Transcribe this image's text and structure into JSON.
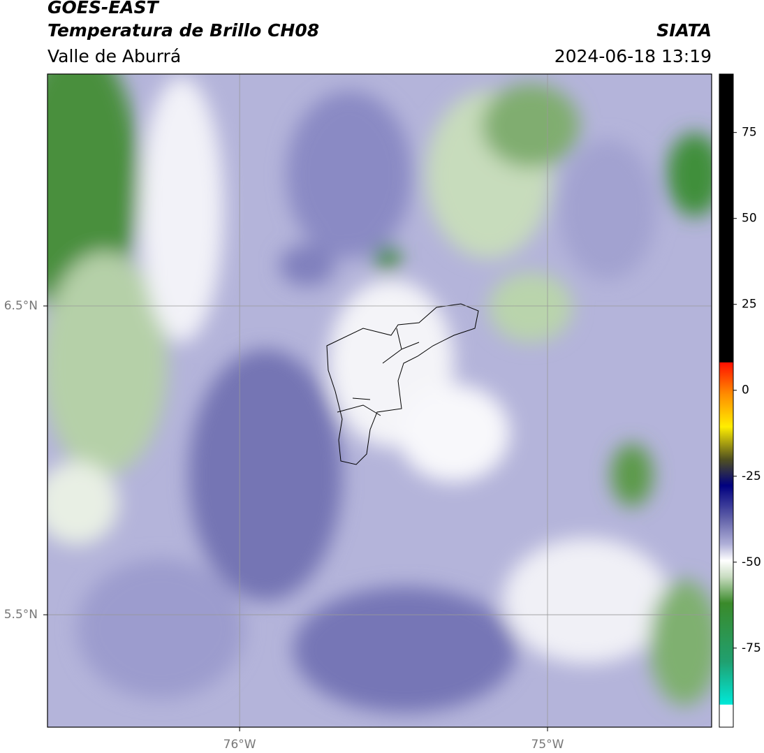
{
  "header": {
    "title": "GOES-EAST",
    "subtitle": "Temperatura de Brillo CH08",
    "region": "Valle de Aburrá",
    "source": "SIATA",
    "datetime": "2024-06-18 13:19"
  },
  "map": {
    "xlim": [
      -76.624,
      -74.467
    ],
    "ylim": [
      5.136,
      7.251
    ],
    "xticks": [
      {
        "value": -76,
        "label": "76°W"
      },
      {
        "value": -75,
        "label": "75°W"
      }
    ],
    "yticks": [
      {
        "value": 6.5,
        "label": "6.5°N"
      },
      {
        "value": 5.5,
        "label": "5.5°N"
      }
    ],
    "grid": true
  },
  "colorbar": {
    "lim": [
      -98,
      92
    ],
    "ticks": [
      75,
      50,
      25,
      0,
      -25,
      -50,
      -75
    ]
  }
}
